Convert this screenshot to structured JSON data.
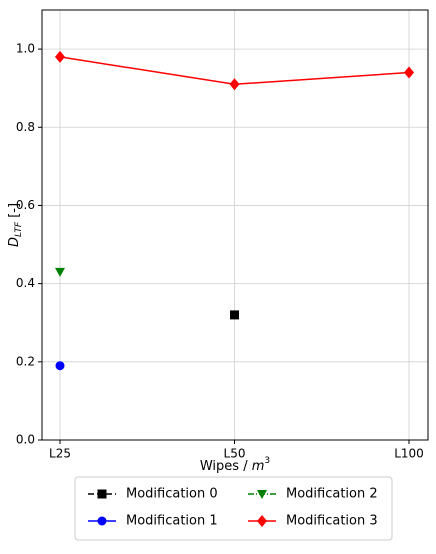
{
  "chart_data": {
    "type": "line",
    "xlabel": {
      "main": "Wipes / ",
      "var": "m",
      "sup": "3"
    },
    "ylabel": {
      "main": "D",
      "sub": "LTF",
      "suffix": " [-]"
    },
    "categories": [
      "L25",
      "L50",
      "L100"
    ],
    "series": [
      {
        "name": "Modification 0",
        "color": "#000000",
        "marker": "square",
        "dash": "6,3",
        "values": [
          null,
          0.32,
          null
        ]
      },
      {
        "name": "Modification 1",
        "color": "#0000ff",
        "marker": "circle",
        "dash": "none",
        "values": [
          0.19,
          null,
          null
        ]
      },
      {
        "name": "Modification 2",
        "color": "#008000",
        "marker": "triangle-down",
        "dash": "6,2,1,2",
        "values": [
          0.43,
          null,
          null
        ]
      },
      {
        "name": "Modification 3",
        "color": "#ff0000",
        "marker": "diamond",
        "dash": "none",
        "values": [
          0.98,
          0.91,
          0.94
        ]
      }
    ],
    "ylim": [
      0,
      1.1
    ],
    "yticks": [
      {
        "value": 0,
        "label": "0.0"
      },
      0.2,
      0.4,
      0.6,
      0.8,
      {
        "value": 1,
        "label": "1.0"
      }
    ],
    "grid": true,
    "legend": "below"
  }
}
